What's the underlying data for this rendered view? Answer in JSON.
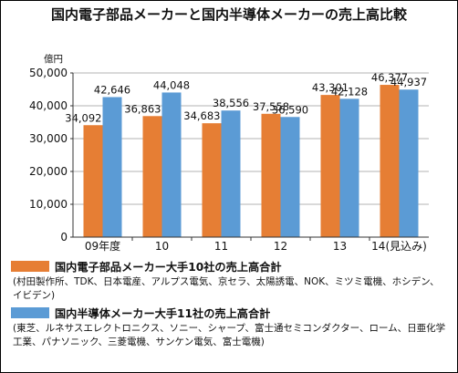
{
  "chart_data": {
    "type": "bar",
    "title": "国内電子部品メーカーと国内半導体メーカーの売上高比較",
    "unit": "億円",
    "categories": [
      "09年度",
      "10",
      "11",
      "12",
      "13",
      "14(見込み)"
    ],
    "series": [
      {
        "name": "国内電子部品メーカー大手10社の売上高合計",
        "members": "(村田製作所、TDK、日本電産、アルプス電気、京セラ、太陽誘電、NOK、ミツミ電機、ホシデン、イビデン)",
        "color": "#e67e34",
        "values": [
          34092,
          36863,
          34683,
          37558,
          43301,
          46377
        ],
        "labels": [
          "34,092",
          "36,863",
          "34,683",
          "37,558",
          "43,301",
          "46,377"
        ]
      },
      {
        "name": "国内半導体メーカー大手11社の売上高合計",
        "members": "(東芝、ルネサスエレクトロニクス、ソニー、シャープ、富士通セミコンダクター、ローム、日亜化学工業、パナソニック、三菱電機、サンケン電気、富士電機)",
        "color": "#5b9bd5",
        "values": [
          42646,
          44048,
          38556,
          36590,
          42128,
          44937
        ],
        "labels": [
          "42,646",
          "44,048",
          "38,556",
          "36,590",
          "42,128",
          "44,937"
        ]
      }
    ],
    "ylim": [
      0,
      50000
    ],
    "yticks": [
      0,
      10000,
      20000,
      30000,
      40000,
      50000
    ],
    "ytick_labels": [
      "0",
      "10,000",
      "20,000",
      "30,000",
      "40,000",
      "50,000"
    ],
    "grid": true,
    "legend_position": "bottom"
  }
}
